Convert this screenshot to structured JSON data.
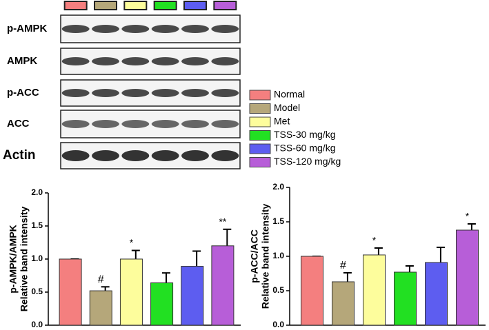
{
  "blot": {
    "labels": [
      "p-AMPK",
      "AMPK",
      "p-ACC",
      "ACC",
      "Actin"
    ]
  },
  "legend": {
    "names": [
      "Normal",
      "Model",
      "Met",
      "TSS-30 mg/kg",
      "TSS-60 mg/kg",
      "TSS-120 mg/kg"
    ],
    "colors": [
      "#f47f7f",
      "#b5a77a",
      "#fdfd9c",
      "#22e022",
      "#5d5df0",
      "#b75ed8"
    ]
  },
  "chart_data": [
    {
      "type": "bar",
      "ylabel": [
        "p-AMPK/AMPK",
        "Relative band intensity"
      ],
      "values": [
        1.0,
        0.52,
        1.0,
        0.64,
        0.89,
        1.2
      ],
      "errors": [
        0,
        0.06,
        0.13,
        0.15,
        0.23,
        0.25
      ],
      "annotations": [
        null,
        "#",
        "*",
        null,
        null,
        "**"
      ],
      "ylim": [
        0,
        2
      ],
      "yticks": [
        {
          "value": 0,
          "label": "0.0"
        },
        {
          "value": 0.5,
          "label": "0.5"
        },
        {
          "value": 1,
          "label": "1.0"
        },
        {
          "value": 1.5,
          "label": "1.5"
        },
        {
          "value": 2,
          "label": "2.0"
        }
      ]
    },
    {
      "type": "bar",
      "ylabel": [
        "p-ACC/ACC",
        "Relative band intensity"
      ],
      "values": [
        1.0,
        0.63,
        1.02,
        0.77,
        0.91,
        1.38
      ],
      "errors": [
        0,
        0.13,
        0.1,
        0.09,
        0.22,
        0.09
      ],
      "annotations": [
        null,
        "#",
        "*",
        null,
        null,
        "*"
      ],
      "ylim": [
        0,
        2
      ],
      "yticks": [
        {
          "value": 0,
          "label": "0.0"
        },
        {
          "value": 0.5,
          "label": "0.5"
        },
        {
          "value": 1,
          "label": "1.0"
        },
        {
          "value": 1.5,
          "label": "1.5"
        },
        {
          "value": 2,
          "label": "2.0"
        }
      ]
    }
  ]
}
